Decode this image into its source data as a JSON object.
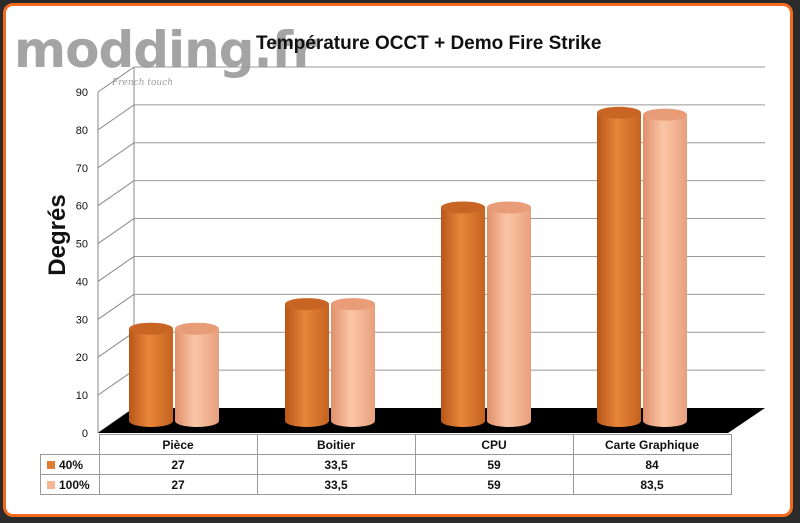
{
  "logo": {
    "text": "modding.fr",
    "tagline": "French touch"
  },
  "chart_data": {
    "type": "bar",
    "title": "Température OCCT + Demo Fire Strike",
    "ylabel": "Degrés",
    "xlabel": "",
    "ylim": [
      0,
      90
    ],
    "yticks": [
      "0",
      "10",
      "20",
      "30",
      "40",
      "50",
      "60",
      "70",
      "80",
      "90"
    ],
    "categories": [
      "Pièce",
      "Boitier",
      "CPU",
      "Carte Graphique"
    ],
    "series": [
      {
        "name": "40%",
        "values": [
          27,
          33.5,
          59,
          84
        ],
        "labels": [
          "27",
          "33,5",
          "59",
          "84"
        ],
        "color": "#e07b2f"
      },
      {
        "name": "100%",
        "values": [
          27,
          33.5,
          59,
          83.5
        ],
        "labels": [
          "27",
          "33,5",
          "59",
          "83,5"
        ],
        "color": "#f7b594"
      }
    ],
    "grid": true,
    "legend": "data-table-bottom",
    "floor_color": "#000000"
  }
}
